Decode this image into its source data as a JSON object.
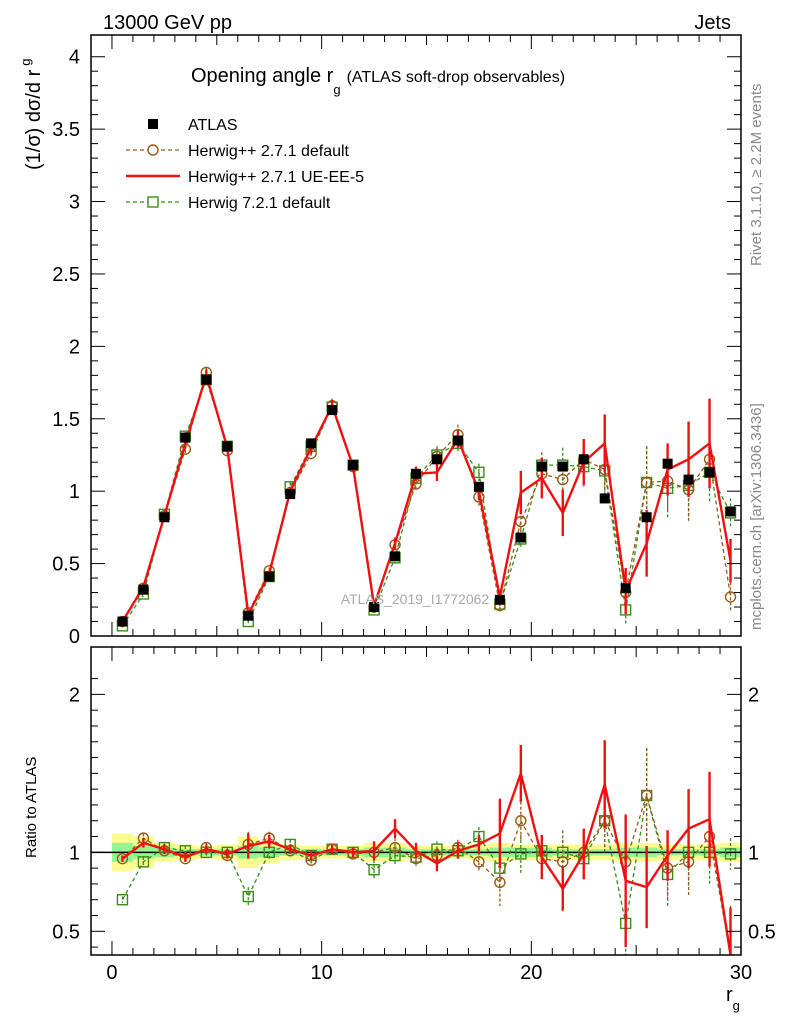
{
  "header": {
    "left": "13000 GeV pp",
    "right": "Jets",
    "side_rivet": "Rivet 3.1.10, ≥ 2.2M events",
    "side_mcplots": "mcplots.cern.ch [arXiv:1306.3436]",
    "watermark": "ATLAS_2019_I1772062"
  },
  "chart_data": {
    "type": "scatter",
    "title_main": "Opening angle r",
    "title_sub": "g",
    "title_tail": "(ATLAS soft-drop observables)",
    "ylabel_main": "(1/σ) dσ/d r",
    "ylabel_sub": "g",
    "xlabel_main": "r",
    "xlabel_sub": "g",
    "ratio_ylabel": "Ratio to ATLAS",
    "xlim": [
      -1,
      30
    ],
    "ylim": [
      0,
      4.15
    ],
    "ratio_ylim": [
      0.35,
      2.3
    ],
    "x_ticks": [
      "0",
      "10",
      "20",
      "30"
    ],
    "y_ticks": [
      "0",
      "0.5",
      "1",
      "1.5",
      "2",
      "2.5",
      "3",
      "3.5",
      "4"
    ],
    "ratio_ticks": [
      "0.5",
      "1",
      "2"
    ],
    "legend_position": "top-left",
    "x": [
      0.5,
      1.5,
      2.5,
      3.5,
      4.5,
      5.5,
      6.5,
      7.5,
      8.5,
      9.5,
      10.5,
      11.5,
      12.5,
      13.5,
      14.5,
      15.5,
      16.5,
      17.5,
      18.5,
      19.5,
      20.5,
      21.5,
      22.5,
      23.5,
      24.5,
      25.5,
      26.5,
      27.5,
      28.5,
      29.5
    ],
    "series": [
      {
        "name": "ATLAS",
        "style": "data",
        "color": "#000000",
        "values": [
          0.1,
          0.32,
          0.82,
          1.37,
          1.77,
          1.31,
          0.14,
          0.41,
          0.98,
          1.33,
          1.56,
          1.18,
          0.2,
          0.55,
          1.12,
          1.22,
          1.35,
          1.03,
          0.25,
          0.68,
          1.17,
          1.17,
          1.22,
          0.95,
          0.33,
          0.82,
          1.19,
          1.08,
          1.13,
          0.86
        ]
      },
      {
        "name": "Herwig++ 2.7.1 default",
        "style": "circle-dashed",
        "color": "#9a5a17",
        "values": [
          0.1,
          0.33,
          0.83,
          1.29,
          1.82,
          1.28,
          0.16,
          0.45,
          0.99,
          1.26,
          1.59,
          1.17,
          0.2,
          0.63,
          1.05,
          1.24,
          1.39,
          0.96,
          0.21,
          0.79,
          1.12,
          1.08,
          1.22,
          1.15,
          0.3,
          1.06,
          1.07,
          1.01,
          1.22,
          0.27
        ],
        "errors": [
          0.01,
          0.02,
          0.03,
          0.03,
          0.04,
          0.03,
          0.02,
          0.02,
          0.03,
          0.04,
          0.05,
          0.04,
          0.02,
          0.04,
          0.05,
          0.06,
          0.07,
          0.06,
          0.05,
          0.07,
          0.09,
          0.12,
          0.14,
          0.16,
          0.1,
          0.25,
          0.2,
          0.22,
          0.2,
          0.1
        ]
      },
      {
        "name": "Herwig++ 2.7.1 UE-EE-5",
        "style": "line",
        "color": "#ee1111",
        "values": [
          0.1,
          0.34,
          0.83,
          1.33,
          1.8,
          1.3,
          0.15,
          0.43,
          1.0,
          1.3,
          1.59,
          1.17,
          0.21,
          0.64,
          1.12,
          1.13,
          1.36,
          1.0,
          0.27,
          0.99,
          1.09,
          0.85,
          1.2,
          1.33,
          0.31,
          0.64,
          1.15,
          1.22,
          1.33,
          0.52
        ],
        "errors": [
          0.01,
          0.02,
          0.03,
          0.03,
          0.04,
          0.03,
          0.02,
          0.02,
          0.03,
          0.04,
          0.04,
          0.04,
          0.02,
          0.04,
          0.05,
          0.06,
          0.06,
          0.06,
          0.05,
          0.15,
          0.14,
          0.16,
          0.16,
          0.2,
          0.16,
          0.23,
          0.18,
          0.26,
          0.31,
          0.15
        ]
      },
      {
        "name": "Herwig 7.2.1 default",
        "style": "square-dashed",
        "color": "#3a8d1c",
        "values": [
          0.07,
          0.29,
          0.84,
          1.38,
          1.77,
          1.31,
          0.1,
          0.41,
          1.03,
          1.31,
          1.58,
          1.18,
          0.18,
          0.54,
          1.09,
          1.25,
          1.33,
          1.13,
          0.22,
          0.67,
          1.18,
          1.18,
          1.17,
          1.14,
          0.18,
          1.06,
          1.02,
          1.04,
          1.13,
          0.85
        ],
        "errors": [
          0.01,
          0.02,
          0.03,
          0.03,
          0.04,
          0.03,
          0.01,
          0.02,
          0.03,
          0.04,
          0.05,
          0.04,
          0.02,
          0.04,
          0.05,
          0.06,
          0.07,
          0.06,
          0.05,
          0.07,
          0.09,
          0.12,
          0.14,
          0.16,
          0.1,
          0.25,
          0.2,
          0.22,
          0.2,
          0.1
        ]
      }
    ],
    "ratio_series": [
      {
        "name": "Herwig++ 2.7.1 default",
        "values": [
          0.96,
          1.09,
          1.01,
          0.96,
          1.03,
          0.98,
          1.05,
          1.09,
          1.01,
          0.95,
          1.02,
          0.99,
          1.0,
          1.03,
          0.96,
          0.98,
          1.03,
          0.94,
          0.81,
          1.2,
          0.96,
          0.94,
          1.0,
          1.2,
          0.94,
          1.36,
          0.9,
          0.94,
          1.1,
          0.31
        ],
        "errors": [
          0.02,
          0.03,
          0.03,
          0.03,
          0.03,
          0.03,
          0.08,
          0.04,
          0.03,
          0.03,
          0.03,
          0.03,
          0.06,
          0.06,
          0.05,
          0.05,
          0.05,
          0.06,
          0.15,
          0.12,
          0.1,
          0.14,
          0.14,
          0.2,
          0.2,
          0.3,
          0.2,
          0.22,
          0.2,
          0.35
        ]
      },
      {
        "name": "Herwig++ 2.7.1 UE-EE-5",
        "values": [
          0.96,
          1.06,
          1.02,
          0.97,
          1.02,
          0.99,
          1.04,
          1.07,
          1.02,
          0.98,
          1.02,
          1.0,
          1.01,
          1.15,
          1.01,
          0.93,
          1.01,
          1.05,
          1.12,
          1.5,
          0.97,
          0.77,
          0.99,
          1.43,
          0.82,
          0.78,
          0.98,
          1.15,
          1.21,
          0.35
        ],
        "errors": [
          0.02,
          0.03,
          0.03,
          0.03,
          0.03,
          0.03,
          0.08,
          0.04,
          0.03,
          0.03,
          0.03,
          0.03,
          0.06,
          0.06,
          0.05,
          0.05,
          0.05,
          0.06,
          0.22,
          0.18,
          0.14,
          0.14,
          0.16,
          0.28,
          0.42,
          0.26,
          0.16,
          0.25,
          0.3,
          0.3
        ]
      },
      {
        "name": "Herwig 7.2.1 default",
        "values": [
          0.7,
          0.94,
          1.03,
          1.01,
          1.0,
          1.0,
          0.72,
          1.0,
          1.05,
          0.98,
          1.02,
          1.0,
          0.89,
          0.98,
          0.97,
          1.02,
          1.01,
          1.1,
          0.9,
          0.99,
          1.01,
          1.0,
          0.96,
          1.2,
          0.55,
          1.36,
          0.86,
          1.0,
          1.0,
          0.99
        ],
        "errors": [
          0.02,
          0.03,
          0.03,
          0.03,
          0.03,
          0.03,
          0.06,
          0.04,
          0.03,
          0.03,
          0.03,
          0.03,
          0.06,
          0.06,
          0.05,
          0.05,
          0.05,
          0.06,
          0.12,
          0.12,
          0.1,
          0.14,
          0.14,
          0.2,
          0.22,
          0.3,
          0.2,
          0.22,
          0.2,
          0.1
        ]
      }
    ],
    "band_inner": [
      0.06,
      0.04,
      0.03,
      0.02,
      0.02,
      0.02,
      0.04,
      0.03,
      0.02,
      0.02,
      0.02,
      0.02,
      0.03,
      0.03,
      0.02,
      0.02,
      0.02,
      0.02,
      0.03,
      0.03,
      0.03,
      0.02,
      0.02,
      0.02,
      0.03,
      0.03,
      0.02,
      0.02,
      0.02,
      0.03
    ],
    "band_outer": [
      0.12,
      0.1,
      0.06,
      0.05,
      0.04,
      0.05,
      0.1,
      0.07,
      0.05,
      0.04,
      0.04,
      0.04,
      0.06,
      0.06,
      0.04,
      0.04,
      0.04,
      0.05,
      0.06,
      0.05,
      0.05,
      0.05,
      0.05,
      0.05,
      0.06,
      0.06,
      0.05,
      0.05,
      0.05,
      0.06
    ]
  }
}
